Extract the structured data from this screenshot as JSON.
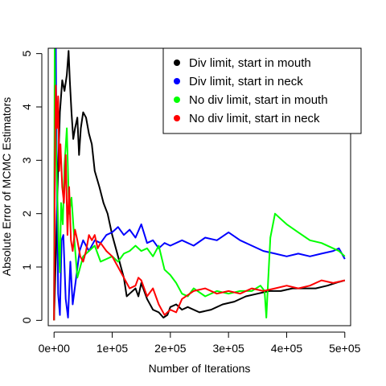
{
  "chart_data": {
    "type": "line",
    "title": "",
    "xlabel": "Number of Iterations",
    "ylabel": "Absolute Error of MCMC Estimators",
    "xlim": [
      -10000,
      510000
    ],
    "ylim": [
      -0.1,
      5.1
    ],
    "x_ticks": [
      {
        "value": 0,
        "label": "0e+00"
      },
      {
        "value": 100000,
        "label": "1e+05"
      },
      {
        "value": 200000,
        "label": "2e+05"
      },
      {
        "value": 300000,
        "label": "3e+05"
      },
      {
        "value": 400000,
        "label": "4e+05"
      },
      {
        "value": 500000,
        "label": "5e+05"
      }
    ],
    "y_ticks": [
      {
        "value": 0,
        "label": "0"
      },
      {
        "value": 1,
        "label": "1"
      },
      {
        "value": 2,
        "label": "2"
      },
      {
        "value": 3,
        "label": "3"
      },
      {
        "value": 4,
        "label": "4"
      },
      {
        "value": 5,
        "label": "5"
      }
    ],
    "grid": false,
    "legend_position": "top-right",
    "series": [
      {
        "name": "Div limit, start in mouth",
        "color": "#000000",
        "x": [
          0,
          3000,
          6000,
          10000,
          14000,
          18000,
          22000,
          25000,
          27000,
          30000,
          33000,
          36000,
          40000,
          43000,
          46000,
          50000,
          55000,
          60000,
          65000,
          70000,
          78000,
          85000,
          92000,
          100000,
          110000,
          120000,
          125000,
          130000,
          140000,
          145000,
          150000,
          160000,
          170000,
          180000,
          188000,
          195000,
          200000,
          210000,
          220000,
          230000,
          250000,
          270000,
          290000,
          310000,
          330000,
          350000,
          370000,
          390000,
          410000,
          430000,
          450000,
          470000,
          490000,
          500000
        ],
        "y": [
          0.0,
          1.2,
          2.5,
          3.9,
          4.5,
          4.3,
          4.6,
          5.05,
          4.5,
          3.9,
          3.4,
          3.6,
          3.8,
          3.1,
          3.6,
          3.9,
          3.8,
          3.5,
          3.3,
          2.8,
          2.5,
          2.2,
          2.0,
          1.6,
          1.2,
          0.8,
          0.45,
          0.5,
          0.6,
          0.45,
          0.7,
          0.4,
          0.2,
          0.15,
          0.05,
          0.1,
          0.25,
          0.3,
          0.2,
          0.25,
          0.15,
          0.2,
          0.3,
          0.35,
          0.45,
          0.5,
          0.55,
          0.55,
          0.6,
          0.6,
          0.6,
          0.65,
          0.72,
          0.75
        ]
      },
      {
        "name": "Div limit, start in neck",
        "color": "#0000ff",
        "x": [
          0,
          1500,
          3000,
          5000,
          7000,
          10000,
          13000,
          16000,
          20000,
          24000,
          28000,
          32000,
          38000,
          44000,
          50000,
          60000,
          70000,
          80000,
          90000,
          100000,
          110000,
          120000,
          130000,
          140000,
          150000,
          160000,
          170000,
          180000,
          190000,
          200000,
          220000,
          240000,
          260000,
          280000,
          300000,
          320000,
          340000,
          360000,
          380000,
          400000,
          420000,
          440000,
          460000,
          480000,
          490000,
          500000
        ],
        "y": [
          0.0,
          4.5,
          5.1,
          2.5,
          0.5,
          0.1,
          1.5,
          1.6,
          0.4,
          0.05,
          1.1,
          0.3,
          0.8,
          1.3,
          1.5,
          1.3,
          1.5,
          1.45,
          1.6,
          1.65,
          1.75,
          1.6,
          1.7,
          1.55,
          1.8,
          1.45,
          1.5,
          1.35,
          1.45,
          1.4,
          1.5,
          1.4,
          1.55,
          1.5,
          1.65,
          1.5,
          1.4,
          1.3,
          1.25,
          1.2,
          1.25,
          1.2,
          1.25,
          1.3,
          1.35,
          1.15
        ]
      },
      {
        "name": "No div limit, start in mouth",
        "color": "#00ff00",
        "x": [
          0,
          1000,
          2000,
          4000,
          6000,
          8000,
          10000,
          12000,
          15000,
          18000,
          22000,
          26000,
          30000,
          35000,
          40000,
          45000,
          50000,
          60000,
          70000,
          80000,
          90000,
          100000,
          110000,
          120000,
          130000,
          140000,
          150000,
          160000,
          170000,
          180000,
          190000,
          200000,
          210000,
          220000,
          230000,
          240000,
          260000,
          280000,
          300000,
          320000,
          340000,
          355000,
          362000,
          365000,
          368000,
          372000,
          380000,
          390000,
          400000,
          420000,
          440000,
          460000,
          480000,
          490000,
          500000
        ],
        "y": [
          0.0,
          5.1,
          4.0,
          3.0,
          2.2,
          1.4,
          0.9,
          2.2,
          1.8,
          2.9,
          3.6,
          2.0,
          2.3,
          1.5,
          0.8,
          1.0,
          1.2,
          1.3,
          1.4,
          1.1,
          1.15,
          1.2,
          1.1,
          1.25,
          1.3,
          1.4,
          1.3,
          1.35,
          1.2,
          1.4,
          0.95,
          0.85,
          0.7,
          0.5,
          0.45,
          0.6,
          0.45,
          0.55,
          0.5,
          0.55,
          0.55,
          0.65,
          0.55,
          0.05,
          0.7,
          1.55,
          2.0,
          1.9,
          1.8,
          1.65,
          1.5,
          1.45,
          1.35,
          1.3,
          1.2
        ]
      },
      {
        "name": "No div limit, start in neck",
        "color": "#ff0000",
        "x": [
          0,
          1500,
          3000,
          5000,
          7000,
          9000,
          11000,
          14000,
          17000,
          20000,
          23000,
          26000,
          29000,
          32000,
          36000,
          40000,
          45000,
          50000,
          55000,
          60000,
          65000,
          70000,
          75000,
          80000,
          90000,
          100000,
          110000,
          120000,
          130000,
          140000,
          145000,
          150000,
          160000,
          170000,
          180000,
          190000,
          200000,
          210000,
          220000,
          240000,
          260000,
          280000,
          300000,
          320000,
          340000,
          360000,
          380000,
          400000,
          420000,
          440000,
          460000,
          480000,
          500000
        ],
        "y": [
          0.0,
          3.0,
          4.4,
          3.6,
          4.2,
          2.8,
          3.3,
          2.5,
          2.2,
          3.1,
          1.6,
          2.5,
          1.5,
          1.3,
          1.7,
          1.5,
          1.2,
          1.1,
          1.3,
          1.6,
          1.5,
          1.6,
          1.35,
          1.45,
          1.3,
          1.2,
          1.0,
          0.8,
          0.6,
          0.65,
          0.8,
          0.75,
          0.45,
          0.6,
          0.3,
          0.1,
          0.2,
          0.15,
          0.4,
          0.55,
          0.6,
          0.5,
          0.55,
          0.5,
          0.6,
          0.55,
          0.6,
          0.65,
          0.6,
          0.65,
          0.75,
          0.7,
          0.75
        ]
      }
    ]
  }
}
